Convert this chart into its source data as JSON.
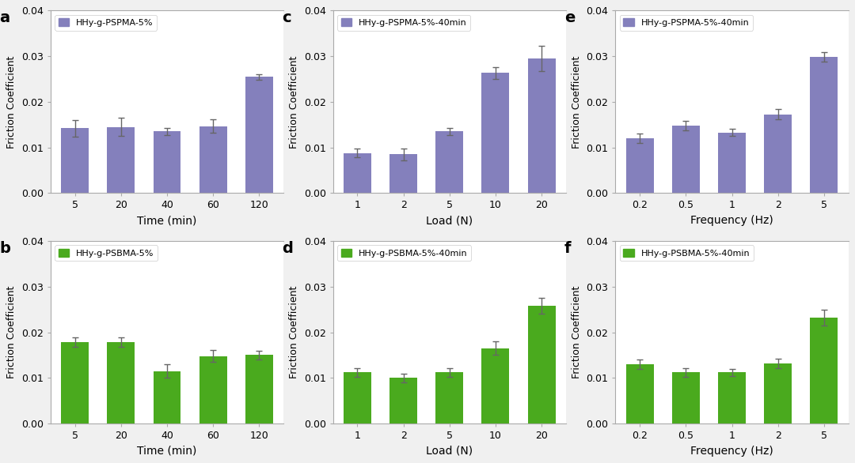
{
  "purple_color": "#8480bc",
  "green_color": "#4aaa1e",
  "panel_a": {
    "label": "a",
    "legend": "HHy-g-PSPMA-5%",
    "xlabel": "Time (min)",
    "categories": [
      "5",
      "20",
      "40",
      "60",
      "120"
    ],
    "values": [
      0.0142,
      0.0145,
      0.0135,
      0.0147,
      0.0255
    ],
    "errors": [
      0.0018,
      0.002,
      0.0008,
      0.0015,
      0.0006
    ]
  },
  "panel_b": {
    "label": "b",
    "legend": "HHy-g-PSBMA-5%",
    "xlabel": "Time (min)",
    "categories": [
      "5",
      "20",
      "40",
      "60",
      "120"
    ],
    "values": [
      0.0178,
      0.0178,
      0.0115,
      0.0148,
      0.015
    ],
    "errors": [
      0.001,
      0.001,
      0.0015,
      0.0013,
      0.001
    ]
  },
  "panel_c": {
    "label": "c",
    "legend": "HHy-g-PSPMA-5%-40min",
    "xlabel": "Load (N)",
    "categories": [
      "1",
      "2",
      "5",
      "10",
      "20"
    ],
    "values": [
      0.0088,
      0.0085,
      0.0135,
      0.0263,
      0.0295
    ],
    "errors": [
      0.001,
      0.0013,
      0.0008,
      0.0013,
      0.0028
    ]
  },
  "panel_d": {
    "label": "d",
    "legend": "HHy-g-PSBMA-5%-40min",
    "xlabel": "Load (N)",
    "categories": [
      "1",
      "2",
      "5",
      "10",
      "20"
    ],
    "values": [
      0.0112,
      0.01,
      0.0112,
      0.0165,
      0.0258
    ],
    "errors": [
      0.001,
      0.001,
      0.001,
      0.0015,
      0.0018
    ]
  },
  "panel_e": {
    "label": "e",
    "legend": "HHy-g-PSPMA-5%-40min",
    "xlabel": "Frequency (Hz)",
    "categories": [
      "0.2",
      "0.5",
      "1",
      "2",
      "5"
    ],
    "values": [
      0.012,
      0.0148,
      0.0133,
      0.0173,
      0.0298
    ],
    "errors": [
      0.001,
      0.001,
      0.0008,
      0.0012,
      0.001
    ]
  },
  "panel_f": {
    "label": "f",
    "legend": "HHy-g-PSBMA-5%-40min",
    "xlabel": "Frequency (Hz)",
    "categories": [
      "0.2",
      "0.5",
      "1",
      "2",
      "5"
    ],
    "values": [
      0.013,
      0.0112,
      0.0112,
      0.0132,
      0.0232
    ],
    "errors": [
      0.001,
      0.001,
      0.0008,
      0.001,
      0.0018
    ]
  },
  "ylabel": "Friction Coefficient",
  "ylim": [
    0,
    0.04
  ],
  "yticks": [
    0.0,
    0.01,
    0.02,
    0.03,
    0.04
  ],
  "fig_bg": "#f0f0f0",
  "axes_bg": "#ffffff",
  "spine_color": "#aaaaaa",
  "error_color": "#666666"
}
